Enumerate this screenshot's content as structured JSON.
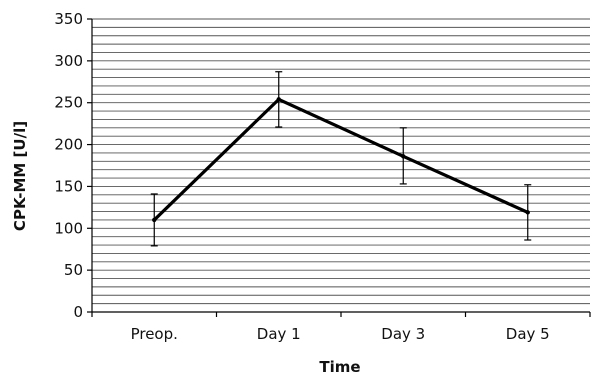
{
  "chart_data": {
    "type": "line",
    "title": "",
    "xlabel": "Time",
    "ylabel": "CPK-MM [U/l]",
    "categories": [
      "Preop.",
      "Day 1",
      "Day 3",
      "Day 5"
    ],
    "series": [
      {
        "values": [
          110,
          254,
          186,
          119
        ],
        "error_low": [
          79,
          221,
          153,
          86
        ],
        "error_high": [
          141,
          287,
          220,
          152
        ]
      }
    ],
    "ylim": [
      0,
      350
    ],
    "yticks": [
      0,
      50,
      100,
      150,
      200,
      250,
      300,
      350
    ],
    "ytick_labels": [
      "0",
      "50",
      "100",
      "150",
      "200",
      "250",
      "300",
      "350"
    ],
    "minor_grid_step": 10,
    "grid": true,
    "legend": "none",
    "colors": {
      "line": "#000000",
      "grid": "#555555",
      "axis": "#000000"
    }
  }
}
